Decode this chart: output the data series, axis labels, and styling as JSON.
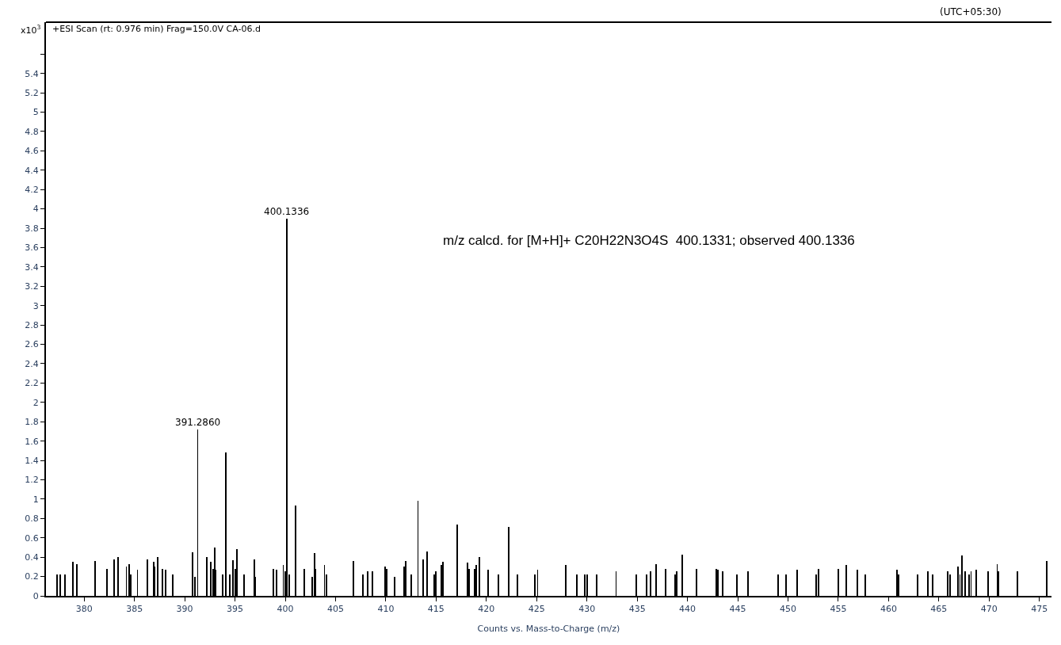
{
  "chart_data": {
    "type": "bar",
    "title": "+ESI Scan (rt: 0.976 min) Frag=150.0V CA-06.d",
    "xlabel": "Counts vs. Mass-to-Charge (m/z)",
    "ylabel": "x10$^{3}$",
    "x": [
      377.3,
      377.6,
      378.1,
      378.9,
      379.3,
      381.1,
      382.3,
      383.0,
      383.4,
      384.2,
      384.5,
      384.6,
      385.3,
      386.3,
      386.9,
      387.0,
      387.3,
      387.8,
      388.1,
      388.8,
      390.8,
      391.0,
      391.286,
      392.2,
      392.6,
      392.8,
      393.0,
      393.1,
      393.8,
      394.1,
      394.5,
      394.8,
      395.0,
      395.2,
      395.9,
      396.9,
      397.0,
      398.8,
      399.1,
      399.8,
      400.0,
      400.1336,
      400.4,
      401.0,
      401.9,
      402.7,
      402.9,
      403.0,
      403.9,
      404.1,
      406.8,
      407.7,
      408.2,
      408.7,
      409.9,
      410.1,
      410.9,
      411.8,
      412.0,
      412.5,
      413.2,
      413.7,
      414.1,
      414.8,
      415.0,
      415.5,
      415.7,
      417.1,
      418.1,
      418.3,
      418.8,
      419.0,
      419.3,
      420.2,
      421.2,
      422.2,
      423.1,
      424.8,
      425.1,
      427.9,
      429.0,
      429.8,
      430.0,
      431.0,
      432.9,
      434.9,
      435.9,
      436.3,
      436.9,
      437.8,
      438.8,
      438.9,
      439.5,
      440.9,
      442.9,
      443.0,
      443.5,
      444.9,
      446.0,
      449.0,
      449.8,
      450.9,
      452.8,
      453.0,
      455.0,
      455.8,
      456.9,
      457.7,
      460.8,
      461.0,
      462.9,
      463.9,
      464.4,
      465.9,
      466.1,
      466.9,
      467.1,
      467.3,
      467.6,
      468.0,
      468.2,
      468.7,
      469.9,
      470.8,
      470.9,
      472.8,
      475.7
    ],
    "values": [
      0.22,
      0.22,
      0.22,
      0.35,
      0.33,
      0.36,
      0.28,
      0.38,
      0.4,
      0.3,
      0.33,
      0.22,
      0.27,
      0.38,
      0.35,
      0.3,
      0.4,
      0.28,
      0.27,
      0.22,
      0.45,
      0.2,
      1.72,
      0.4,
      0.35,
      0.28,
      0.5,
      0.27,
      0.22,
      1.48,
      0.22,
      0.37,
      0.28,
      0.48,
      0.22,
      0.38,
      0.2,
      0.28,
      0.27,
      0.32,
      0.25,
      3.9,
      0.22,
      0.93,
      0.28,
      0.2,
      0.44,
      0.28,
      0.32,
      0.22,
      0.36,
      0.22,
      0.25,
      0.25,
      0.3,
      0.28,
      0.2,
      0.3,
      0.36,
      0.22,
      0.98,
      0.38,
      0.46,
      0.22,
      0.25,
      0.32,
      0.35,
      0.74,
      0.34,
      0.28,
      0.28,
      0.32,
      0.4,
      0.27,
      0.22,
      0.71,
      0.22,
      0.22,
      0.27,
      0.32,
      0.22,
      0.22,
      0.22,
      0.22,
      0.25,
      0.22,
      0.22,
      0.25,
      0.33,
      0.28,
      0.22,
      0.25,
      0.43,
      0.28,
      0.28,
      0.27,
      0.25,
      0.22,
      0.25,
      0.22,
      0.22,
      0.27,
      0.22,
      0.28,
      0.28,
      0.32,
      0.27,
      0.22,
      0.27,
      0.22,
      0.22,
      0.25,
      0.22,
      0.25,
      0.22,
      0.3,
      0.22,
      0.42,
      0.25,
      0.22,
      0.25,
      0.27,
      0.25,
      0.33,
      0.25,
      0.25,
      0.36
    ],
    "color": "#000000",
    "xlim": [
      376.2,
      476.2
    ],
    "xticks": [
      380,
      385,
      390,
      395,
      400,
      405,
      410,
      415,
      420,
      425,
      430,
      435,
      440,
      445,
      450,
      455,
      460,
      465,
      470,
      475
    ],
    "ylim": [
      0,
      5.93
    ],
    "yticks": [
      0,
      0.2,
      0.4,
      0.6,
      0.8,
      1,
      1.2,
      1.4,
      1.6,
      1.8,
      2,
      2.2,
      2.4,
      2.6,
      2.8,
      3,
      3.2,
      3.4,
      3.6,
      3.8,
      4,
      4.2,
      4.4,
      4.6,
      4.8,
      5,
      5.2,
      5.4,
      {
        "value": 5.6,
        "label": null
      }
    ],
    "annotations": [
      {
        "text": "391.2860",
        "x": 391.286,
        "y": 1.72
      },
      {
        "text": "400.1336",
        "x": 400.1336,
        "y": 3.9
      },
      "m/z calcd. for [M+H]+ C20H22N3O4S  400.1331; observed 400.1336",
      "(UTC+05:30)"
    ]
  }
}
